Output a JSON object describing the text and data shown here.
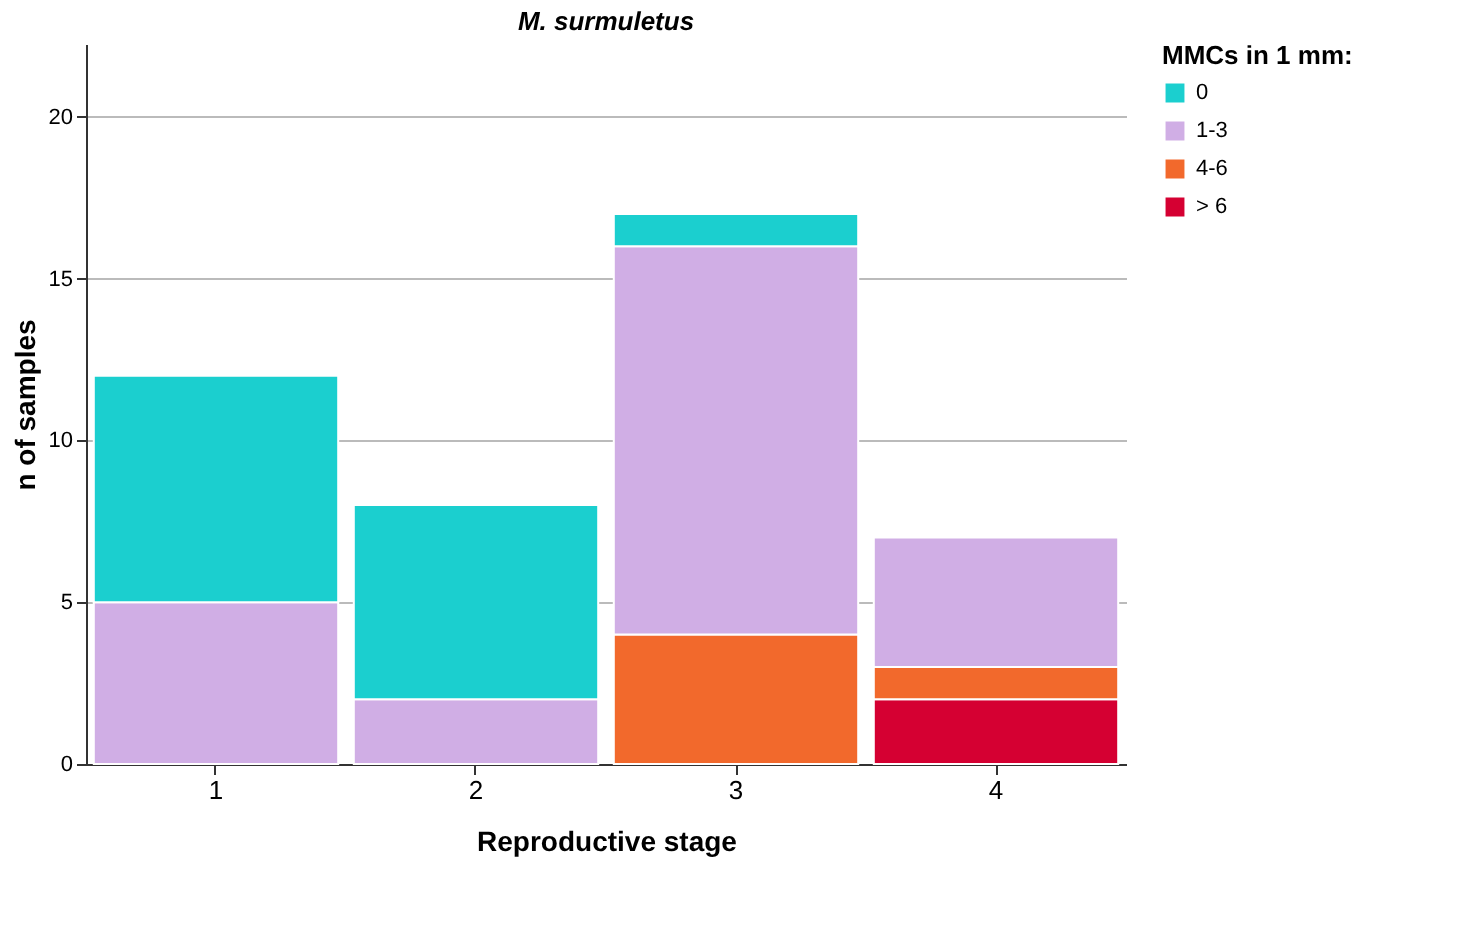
{
  "chart_data": {
    "type": "bar",
    "title": "M. surmuletus",
    "xlabel": "Reproductive stage",
    "ylabel": "n of samples",
    "legend_title": "MMCs in 1 mm:",
    "categories": [
      "1",
      "2",
      "3",
      "4"
    ],
    "stacked": true,
    "series": [
      {
        "name": "> 6",
        "color": "#d50032",
        "values": [
          null,
          null,
          null,
          2
        ]
      },
      {
        "name": "4-6",
        "color": "#f2692c",
        "values": [
          null,
          null,
          4,
          1
        ]
      },
      {
        "name": "1-3",
        "color": "#d0aee5",
        "values": [
          5,
          2,
          12,
          4
        ]
      },
      {
        "name": "0",
        "color": "#1bcfcf",
        "values": [
          7,
          6,
          1,
          null
        ]
      }
    ],
    "ylim": [
      0,
      22.25
    ],
    "yticks": [
      0,
      5,
      10,
      15,
      20
    ],
    "grid": "y",
    "legend": "top right"
  }
}
